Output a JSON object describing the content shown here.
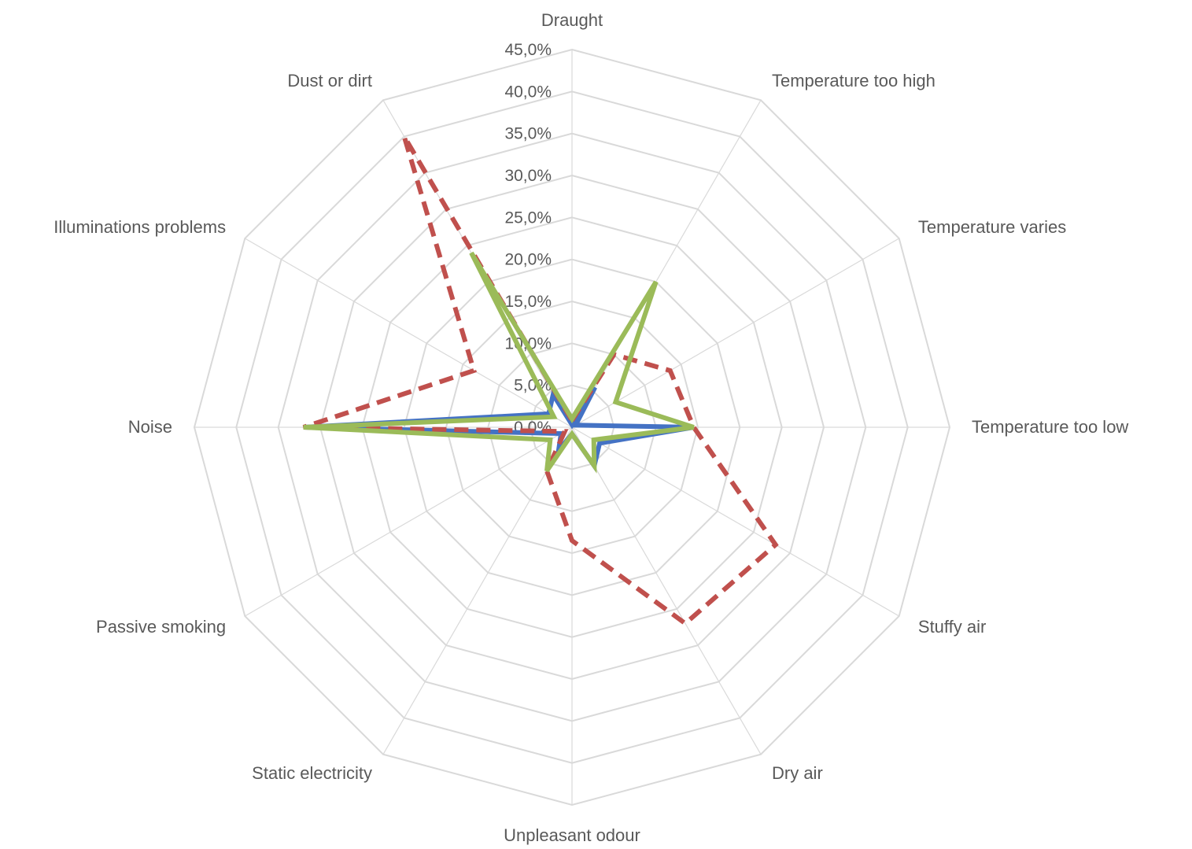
{
  "chart_data": {
    "type": "radar",
    "title": "",
    "categories": [
      "Draught",
      "Temperature too high",
      "Temperature varies",
      "Temperature too low",
      "Stuffy air",
      "Dry air",
      "Unpleasant odour",
      "Static electricity",
      "Passive smoking",
      "Noise",
      "Illuminations problems",
      "Dust or dirt"
    ],
    "tick_labels": [
      "0,0%",
      "5,0%",
      "10,0%",
      "15,0%",
      "20,0%",
      "25,0%",
      "30,0%",
      "35,0%",
      "40,0%",
      "45,0%"
    ],
    "rlim": [
      0,
      45
    ],
    "grid": true,
    "legend": "none",
    "series": [
      {
        "values": [
          0.3,
          5.5,
          0.5,
          14.5,
          3.8,
          5.3,
          0.8,
          3.2,
          1.5,
          32.0,
          3.2,
          4.5
        ],
        "color": "#4472c4",
        "dash": "solid"
      },
      {
        "values": [
          0.8,
          10.0,
          13.5,
          14.5,
          28.0,
          27.0,
          13.5,
          6.0,
          1.0,
          32.0,
          13.5,
          40.0
        ],
        "color": "#c0504d",
        "dash": "dashed"
      },
      {
        "values": [
          1.0,
          20.0,
          6.0,
          14.5,
          3.0,
          5.3,
          0.8,
          6.0,
          3.0,
          32.0,
          2.5,
          24.0
        ],
        "color": "#9bbb59",
        "dash": "solid"
      }
    ]
  }
}
